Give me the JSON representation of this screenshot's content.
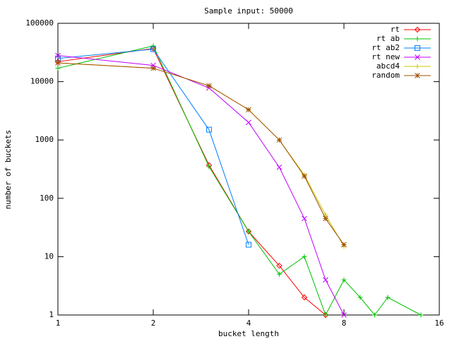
{
  "chart_data": {
    "type": "line",
    "title": "Sample input: 50000",
    "x_label": "bucket length",
    "y_label": "number of buckets",
    "x": [
      1,
      2,
      3,
      4,
      5,
      6,
      7,
      8,
      9,
      10,
      11,
      14
    ],
    "xscale": "log",
    "yscale": "log",
    "xlim": [
      1,
      16
    ],
    "ylim": [
      1,
      100000
    ],
    "xticks": [
      1,
      2,
      4,
      8,
      16
    ],
    "yticks": [
      1,
      10,
      100,
      1000,
      10000,
      100000
    ],
    "legend": "upper right",
    "series": [
      {
        "name": "rt",
        "color": "#ff0000",
        "marker": "diamond",
        "values": [
          22000,
          37000,
          370,
          27,
          7,
          2,
          1,
          null,
          null,
          null,
          null,
          null
        ]
      },
      {
        "name": "rt ab",
        "color": "#00c000",
        "marker": "plus",
        "values": [
          17000,
          41000,
          350,
          27,
          5,
          10,
          1,
          4,
          2,
          1,
          2,
          1
        ]
      },
      {
        "name": "rt ab2",
        "color": "#0080ff",
        "marker": "square",
        "values": [
          25000,
          36000,
          1500,
          16,
          null,
          null,
          null,
          null,
          null,
          null,
          null,
          null
        ]
      },
      {
        "name": "rt new",
        "color": "#c000ff",
        "marker": "x",
        "values": [
          28000,
          19000,
          7800,
          2000,
          340,
          45,
          4,
          1,
          null,
          null,
          null,
          null
        ]
      },
      {
        "name": "abcd4",
        "color": "#c8c800",
        "marker": "plus",
        "values": [
          21000,
          17000,
          8500,
          3300,
          1000,
          250,
          52,
          15,
          null,
          null,
          null,
          null
        ]
      },
      {
        "name": "random",
        "color": "#a05000",
        "marker": "star",
        "values": [
          21000,
          17000,
          8500,
          3300,
          1000,
          240,
          45,
          16,
          null,
          null,
          null,
          null
        ]
      }
    ]
  }
}
